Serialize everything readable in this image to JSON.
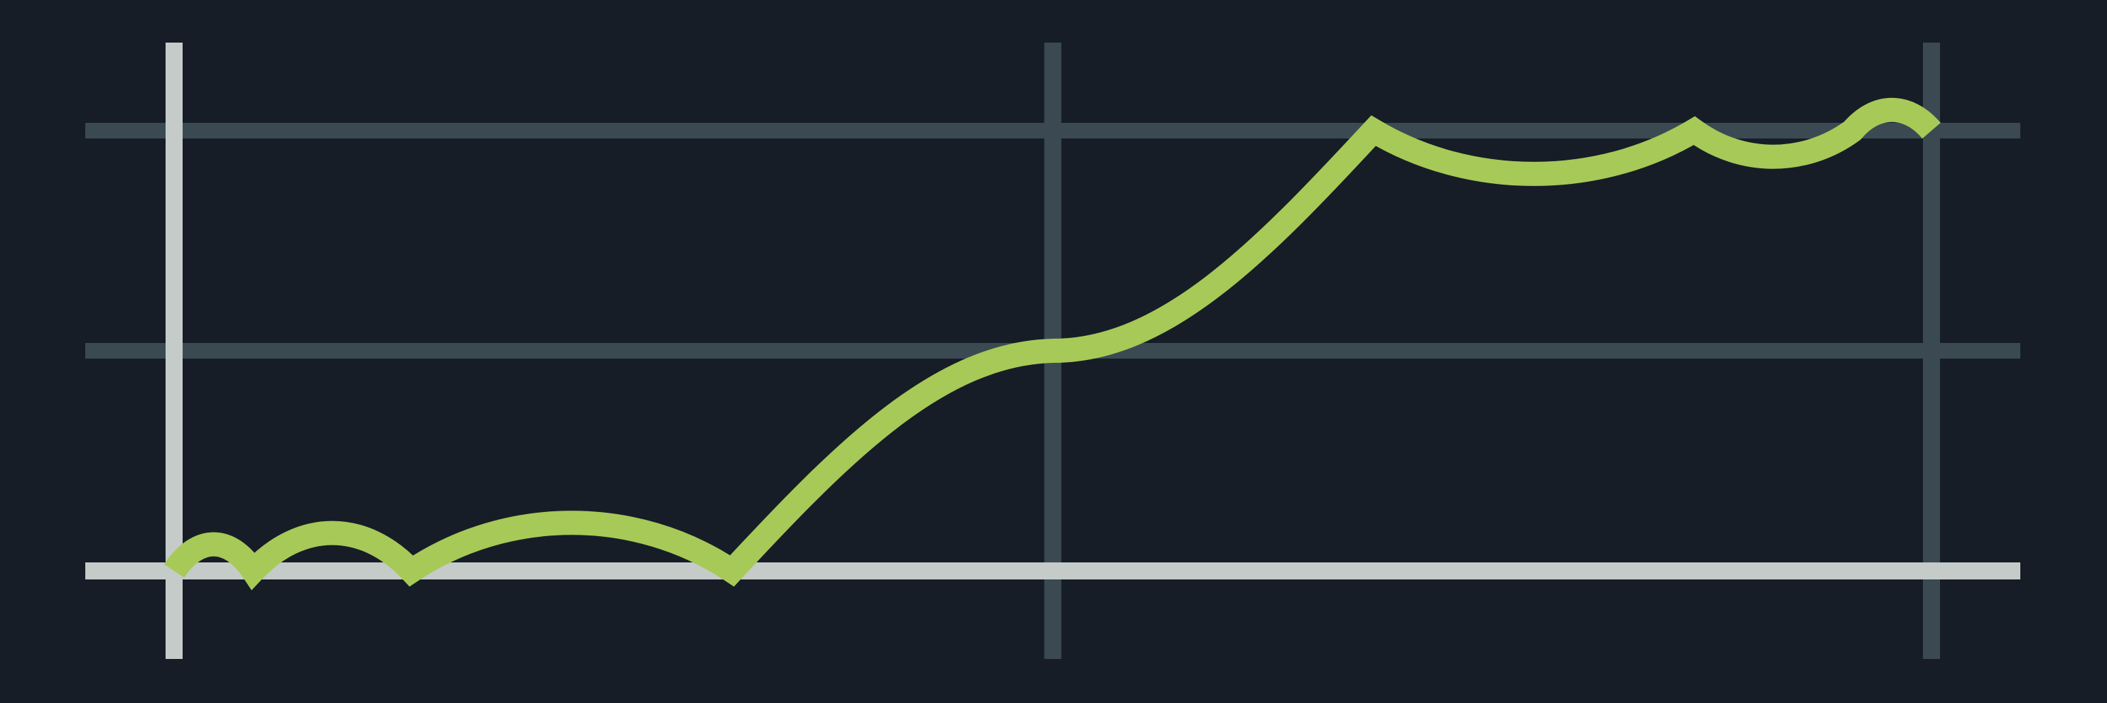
{
  "chart_data": {
    "type": "line",
    "title": "",
    "xlabel": "",
    "ylabel": "",
    "grid": true,
    "xlim": [
      0,
      20
    ],
    "ylim": [
      0,
      4
    ],
    "x_gridlines": [
      10,
      20
    ],
    "y_gridlines": [
      2,
      4
    ],
    "series": [
      {
        "x": [
          0,
          0.9,
          2.7,
          6.35,
          10,
          13.65,
          17.3,
          19.1,
          20
        ],
        "y": [
          0,
          0,
          0,
          0,
          2,
          4,
          4,
          4,
          4
        ],
        "color": "#a7c957"
      }
    ]
  },
  "colors": {
    "background": "#161d27",
    "grid": "#3b4a52",
    "axis": "#c5cbc9",
    "line": "#a7c957"
  }
}
